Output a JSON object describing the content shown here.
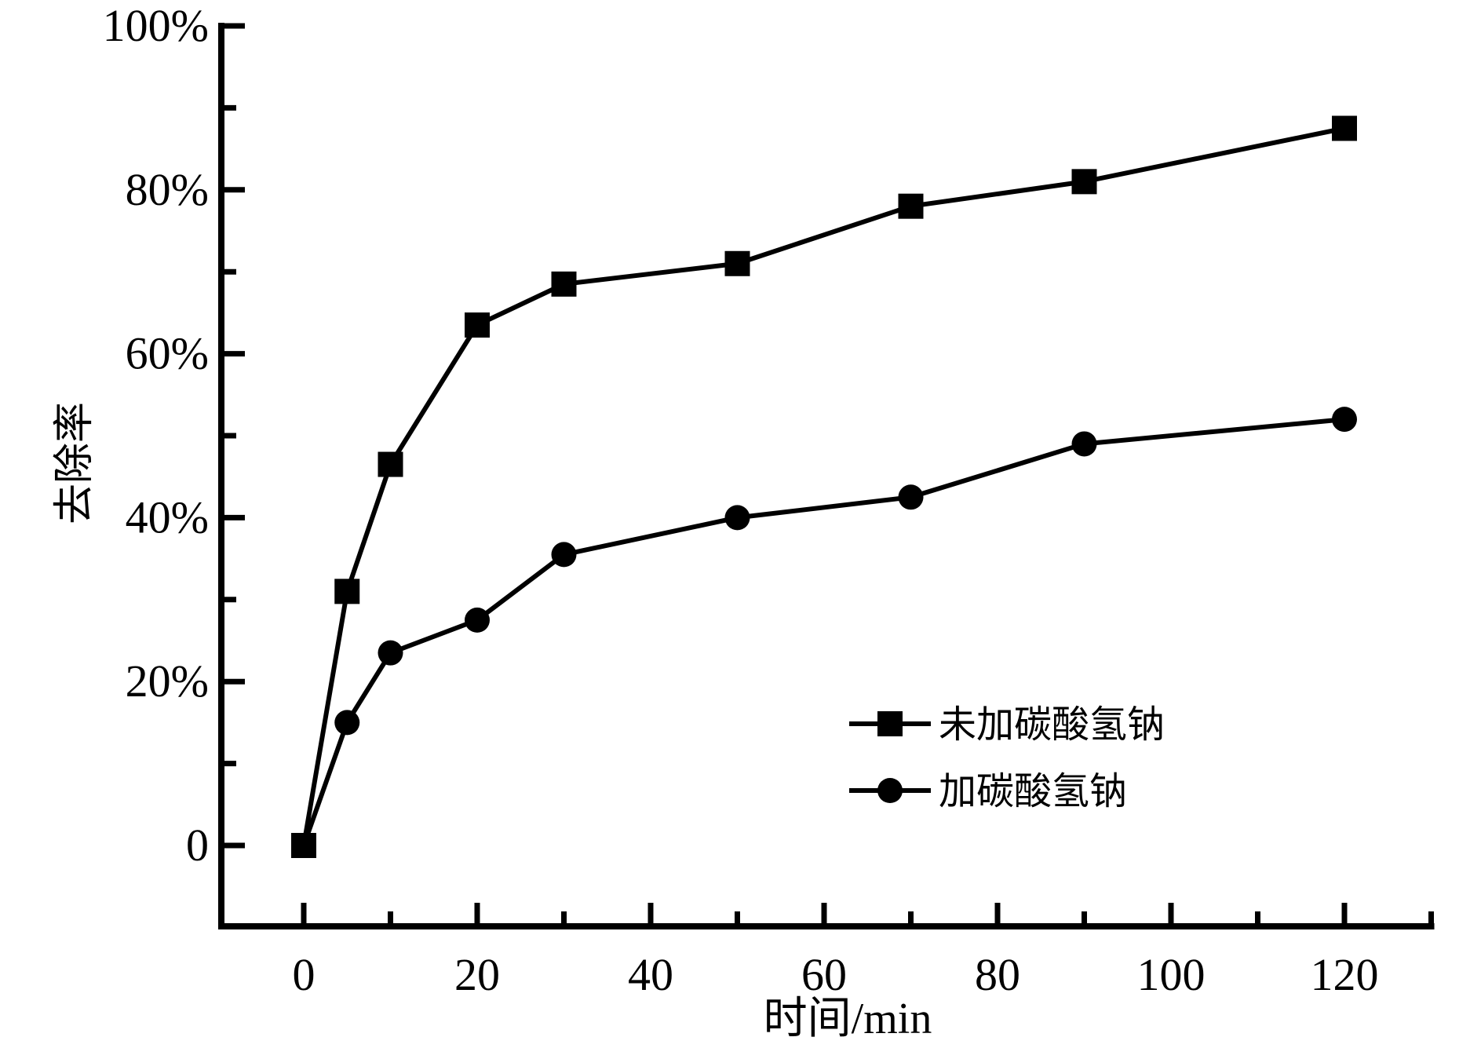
{
  "figure": {
    "background": "#ffffff",
    "foreground": "#000000"
  },
  "chart_data": {
    "type": "line",
    "title": "",
    "xlabel": "时间/min",
    "ylabel": "去除率",
    "xlim": [
      -10,
      130
    ],
    "ylim": [
      -10,
      100
    ],
    "y_unit": "percent",
    "grid": false,
    "legend_position": "inside-lower-right",
    "x_ticks_major": [
      0,
      20,
      40,
      60,
      80,
      100,
      120
    ],
    "x_tick_labels": [
      "0",
      "20",
      "40",
      "60",
      "80",
      "100",
      "120"
    ],
    "x_ticks_minor": [
      10,
      30,
      50,
      70,
      90,
      110,
      130
    ],
    "y_ticks_major": [
      0,
      20,
      40,
      60,
      80,
      100
    ],
    "y_tick_labels": [
      "0",
      "20%",
      "40%",
      "60%",
      "80%",
      "100%"
    ],
    "y_ticks_minor": [
      10,
      30,
      50,
      70,
      90
    ],
    "axis_color": "#000000",
    "series": [
      {
        "name": "未加碳酸氢钠",
        "marker": "square",
        "color": "#000000",
        "x": [
          0,
          5,
          10,
          20,
          30,
          50,
          70,
          90,
          120
        ],
        "y": [
          0,
          31,
          46.5,
          63.5,
          68.5,
          71,
          78,
          81,
          87.5
        ]
      },
      {
        "name": "加碳酸氢钠",
        "marker": "circle",
        "color": "#000000",
        "x": [
          0,
          5,
          10,
          20,
          30,
          50,
          70,
          90,
          120
        ],
        "y": [
          0,
          15,
          23.5,
          27.5,
          35.5,
          40,
          42.5,
          49,
          52
        ]
      }
    ]
  }
}
